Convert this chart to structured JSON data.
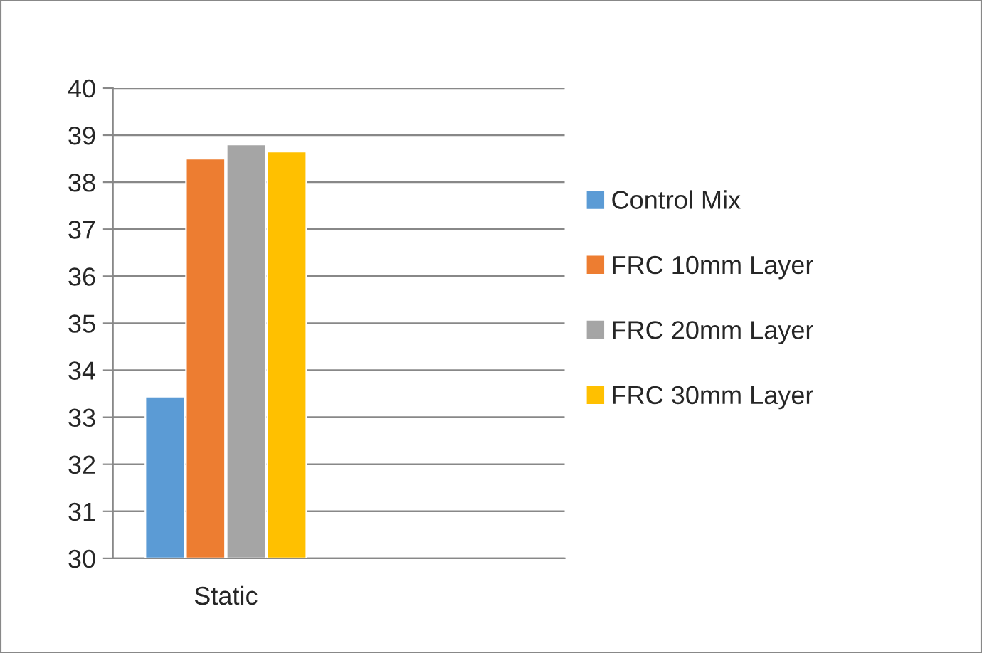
{
  "chart_data": {
    "type": "bar",
    "categories": [
      "Static",
      null
    ],
    "series": [
      {
        "name": "Control Mix",
        "color": "#5b9bd5",
        "values": [
          33.44,
          null
        ]
      },
      {
        "name": "FRC 10mm Layer",
        "color": "#ed7d31",
        "values": [
          38.5,
          null
        ]
      },
      {
        "name": "FRC 20mm Layer",
        "color": "#a5a5a5",
        "values": [
          38.8,
          null
        ]
      },
      {
        "name": "FRC 30mm Layer",
        "color": "#ffc000",
        "values": [
          38.65,
          null
        ]
      }
    ],
    "ylim": [
      30,
      40
    ],
    "yticks": [
      30,
      31,
      32,
      33,
      34,
      35,
      36,
      37,
      38,
      39,
      40
    ],
    "grid": "y",
    "legend": "right"
  }
}
